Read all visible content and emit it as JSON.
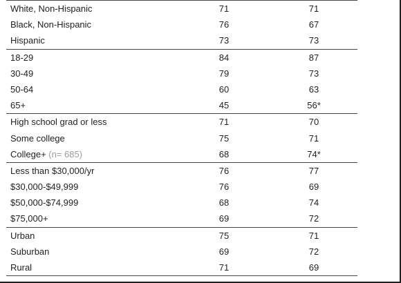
{
  "groups": [
    {
      "rows": [
        {
          "label": "White, Non-Hispanic",
          "note": "",
          "a": "71",
          "b": "71"
        },
        {
          "label": "Black, Non-Hispanic",
          "note": "",
          "a": "76",
          "b": "67"
        },
        {
          "label": "Hispanic",
          "note": "",
          "a": "73",
          "b": "73"
        }
      ]
    },
    {
      "rows": [
        {
          "label": "18-29",
          "note": "",
          "a": "84",
          "b": "87"
        },
        {
          "label": "30-49",
          "note": "",
          "a": "79",
          "b": "73"
        },
        {
          "label": "50-64",
          "note": "",
          "a": "60",
          "b": "63"
        },
        {
          "label": "65+",
          "note": "",
          "a": "45",
          "b": "56*"
        }
      ]
    },
    {
      "rows": [
        {
          "label": "High school grad or less",
          "note": "",
          "a": "71",
          "b": "70"
        },
        {
          "label": "Some college",
          "note": "",
          "a": "75",
          "b": "71"
        },
        {
          "label": "College+",
          "note": " (n= 685)",
          "a": "68",
          "b": "74*"
        }
      ]
    },
    {
      "rows": [
        {
          "label": "Less than $30,000/yr",
          "note": "",
          "a": "76",
          "b": "77"
        },
        {
          "label": "$30,000-$49,999",
          "note": "",
          "a": "76",
          "b": "69"
        },
        {
          "label": "$50,000-$74,999",
          "note": "",
          "a": "68",
          "b": "74"
        },
        {
          "label": "$75,000+",
          "note": "",
          "a": "69",
          "b": "72"
        }
      ]
    },
    {
      "rows": [
        {
          "label": "Urban",
          "note": "",
          "a": "75",
          "b": "71"
        },
        {
          "label": "Suburban",
          "note": "",
          "a": "69",
          "b": "72"
        },
        {
          "label": "Rural",
          "note": "",
          "a": "71",
          "b": "69"
        }
      ]
    }
  ]
}
